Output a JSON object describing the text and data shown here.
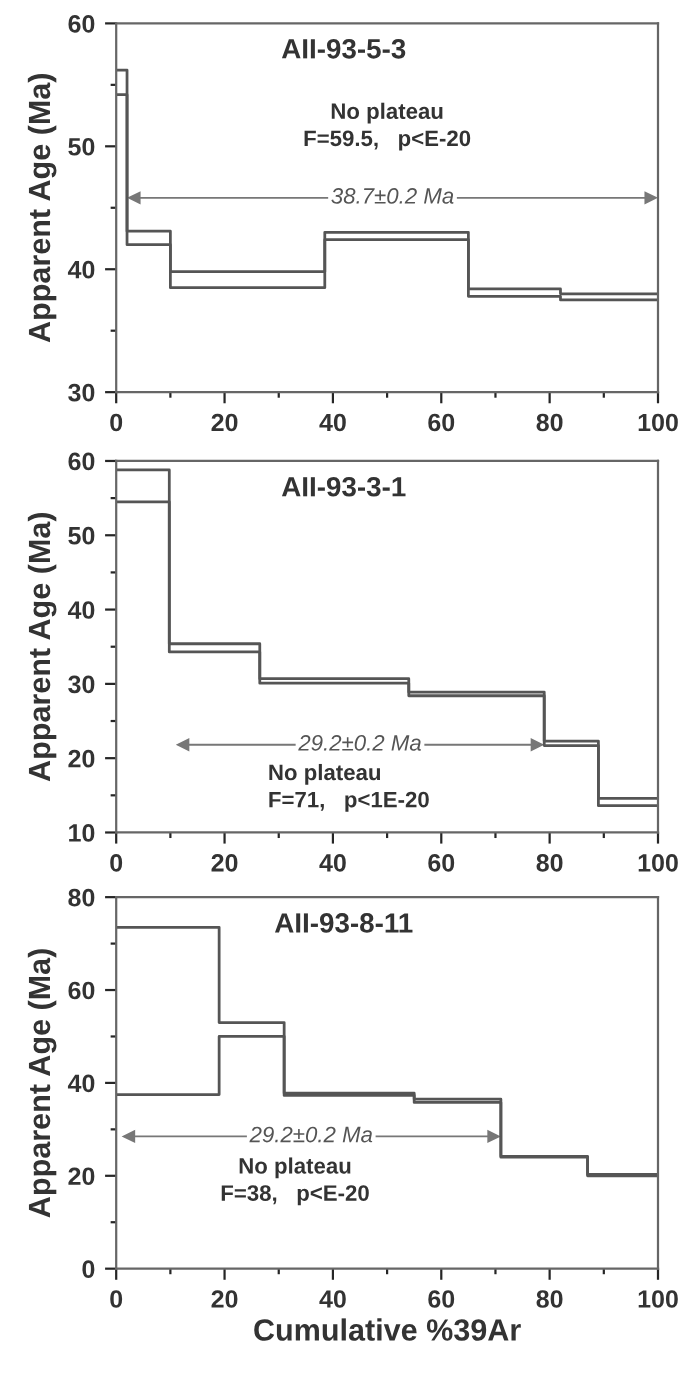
{
  "chart_data": [
    {
      "type": "step",
      "title": "AII-93-5-3",
      "ylabel": "Apparent Age (Ma)",
      "xlim": [
        0,
        100
      ],
      "xticks": [
        0,
        20,
        40,
        60,
        80,
        100
      ],
      "ylim": [
        30,
        60
      ],
      "yticks": [
        30,
        40,
        50,
        60
      ],
      "grid": false,
      "legend": false,
      "series": [
        {
          "color": "#555555",
          "x": [
            0,
            2,
            10,
            38.5,
            65,
            82,
            100
          ],
          "values": [
            54.2,
            42.0,
            38.5,
            42.4,
            37.8,
            37.5,
            37.5
          ]
        },
        {
          "color": "#555555",
          "x": [
            0,
            2,
            10,
            38.5,
            65,
            82,
            100
          ],
          "values": [
            56.2,
            43.1,
            39.8,
            43.0,
            38.4,
            38.0,
            38.0
          ]
        }
      ],
      "annotations": [
        "38.7±0.2 Ma",
        "No plateau\nF=59.5,   p<E-20"
      ]
    },
    {
      "type": "step",
      "title": "AII-93-3-1",
      "ylabel": "Apparent Age (Ma)",
      "xlim": [
        0,
        100
      ],
      "xticks": [
        0,
        20,
        40,
        60,
        80,
        100
      ],
      "ylim": [
        10,
        60
      ],
      "yticks": [
        10,
        20,
        30,
        40,
        50,
        60
      ],
      "grid": false,
      "legend": false,
      "series": [
        {
          "color": "#555555",
          "x": [
            0,
            9.8,
            26.5,
            54,
            79,
            89,
            100
          ],
          "values": [
            54.5,
            34.3,
            30.1,
            28.4,
            21.7,
            13.6,
            13.6
          ]
        },
        {
          "color": "#555555",
          "x": [
            0,
            9.8,
            26.5,
            54,
            79,
            89,
            100
          ],
          "values": [
            58.8,
            35.4,
            30.7,
            28.9,
            22.3,
            14.6,
            14.6
          ]
        }
      ],
      "annotations": [
        "29.2±0.2 Ma",
        "No plateau\nF=71,   p<1E-20"
      ]
    },
    {
      "type": "step",
      "title": "AII-93-8-11",
      "xlabel": "Cumulative %39Ar",
      "ylabel": "Apparent Age (Ma)",
      "xlim": [
        0,
        100
      ],
      "xticks": [
        0,
        20,
        40,
        60,
        80,
        100
      ],
      "ylim": [
        0,
        80
      ],
      "yticks": [
        0,
        20,
        40,
        60,
        80
      ],
      "grid": false,
      "legend": false,
      "series": [
        {
          "color": "#555555",
          "x": [
            0,
            19,
            31,
            55,
            71,
            87,
            100
          ],
          "values": [
            37.5,
            50.0,
            37.3,
            35.8,
            24.0,
            20.0,
            20.0
          ]
        },
        {
          "color": "#555555",
          "x": [
            0,
            19,
            31,
            55,
            71,
            87,
            100
          ],
          "values": [
            73.5,
            53.0,
            37.8,
            36.5,
            24.2,
            20.3,
            20.3
          ]
        }
      ],
      "annotations": [
        "29.2±0.2 Ma",
        "No plateau\nF=38,   p<E-20"
      ]
    }
  ]
}
